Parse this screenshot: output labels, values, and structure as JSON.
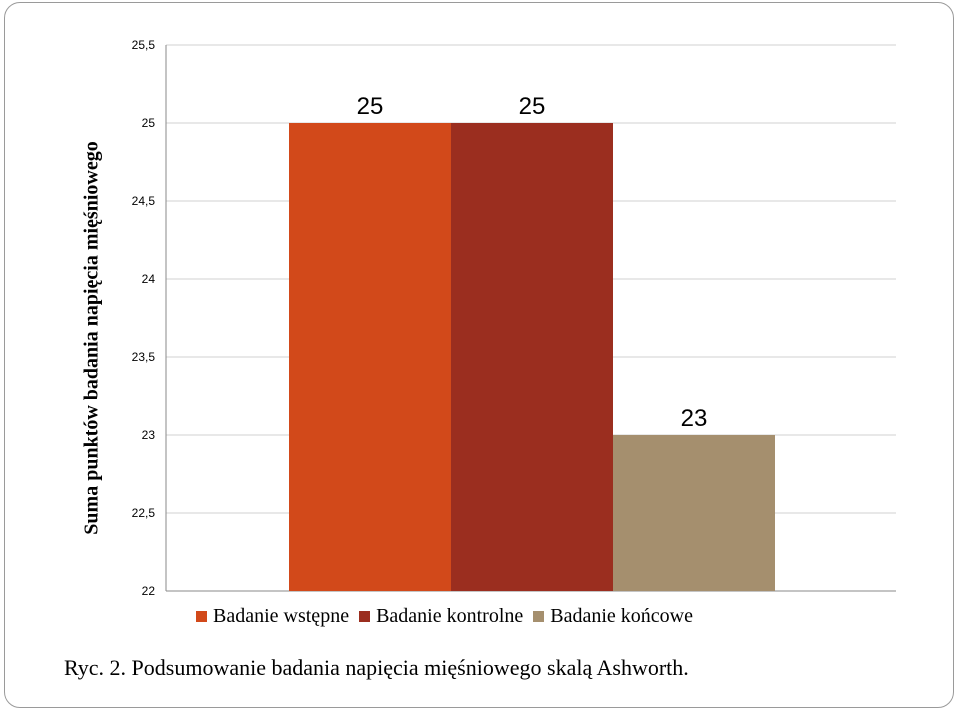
{
  "chart_data": {
    "type": "bar",
    "categories": [
      "Badanie wstępne",
      "Badanie kontrolne",
      "Badanie końcowe"
    ],
    "values": [
      25,
      25,
      23
    ],
    "data_labels": [
      "25",
      "25",
      "23"
    ],
    "colors": [
      "#D2491A",
      "#9B2E1F",
      "#A58F6E"
    ],
    "ylabel": "Suma punktów badania napięcia mięśniowego",
    "ylim": [
      22,
      25.5
    ],
    "yticks": [
      "22",
      "22,5",
      "23",
      "23,5",
      "24",
      "24,5",
      "25",
      "25,5"
    ],
    "grid": true,
    "legend_position": "bottom"
  },
  "caption": "Ryc. 2. Podsumowanie badania napięcia mięśniowego skalą Ashworth."
}
